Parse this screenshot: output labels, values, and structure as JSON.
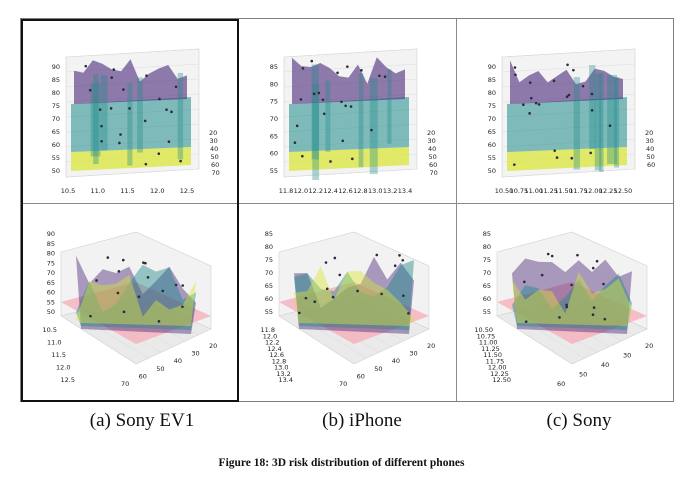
{
  "figure": {
    "caption": "Figure 18: 3D risk distribution of different phones"
  },
  "columns": [
    {
      "caption": "(a) Sony EV1"
    },
    {
      "caption": "(b) iPhone"
    },
    {
      "caption": "(c) Sony"
    }
  ],
  "plots": {
    "top": [
      {
        "x_ticks": [
          "10.5",
          "11.0",
          "11.5",
          "12.0",
          "12.5"
        ],
        "y_ticks": [
          "90",
          "85",
          "80",
          "75",
          "70",
          "65",
          "60",
          "55",
          "50"
        ],
        "depth_ticks": [
          "20",
          "30",
          "40",
          "50",
          "60",
          "70"
        ]
      },
      {
        "x_ticks": [
          "11.8",
          "12.0",
          "12.2",
          "12.4",
          "12.6",
          "12.8",
          "13.0",
          "13.2",
          "13.4"
        ],
        "y_ticks": [
          "85",
          "80",
          "75",
          "70",
          "65",
          "60",
          "55"
        ],
        "depth_ticks": [
          "20",
          "30",
          "40",
          "50",
          "60",
          "70"
        ]
      },
      {
        "x_ticks": [
          "10.50",
          "10.75",
          "11.00",
          "11.25",
          "11.50",
          "11.75",
          "12.00",
          "12.25",
          "12.50"
        ],
        "y_ticks": [
          "90",
          "85",
          "80",
          "75",
          "70",
          "65",
          "60",
          "55",
          "50"
        ],
        "depth_ticks": [
          "20",
          "30",
          "40",
          "50",
          "60"
        ]
      }
    ],
    "bottom": [
      {
        "z_ticks": [
          "90",
          "85",
          "80",
          "75",
          "70",
          "65",
          "60",
          "55",
          "50"
        ],
        "x_ticks": [
          "10.5",
          "11.0",
          "11.5",
          "12.0",
          "12.5"
        ],
        "y_ticks": [
          "70",
          "60",
          "50",
          "40",
          "30",
          "20"
        ]
      },
      {
        "z_ticks": [
          "85",
          "80",
          "75",
          "70",
          "65",
          "60",
          "55"
        ],
        "x_ticks": [
          "11.8",
          "12.0",
          "12.2",
          "12.4",
          "12.6",
          "12.8",
          "13.0",
          "13.2",
          "13.4"
        ],
        "y_ticks": [
          "70",
          "60",
          "50",
          "40",
          "30",
          "20"
        ]
      },
      {
        "z_ticks": [
          "85",
          "80",
          "75",
          "70",
          "65",
          "60",
          "55"
        ],
        "x_ticks": [
          "10.50",
          "10.75",
          "11.00",
          "11.25",
          "11.50",
          "11.75",
          "12.00",
          "12.25",
          "12.50"
        ],
        "y_ticks": [
          "60",
          "50",
          "40",
          "30",
          "20"
        ]
      }
    ]
  },
  "colors": {
    "surface_top": "#4b2a7a",
    "surface_mid": "#1f8a8a",
    "surface_low": "#d9e53a",
    "threshold_plane": "#f7a6b4"
  }
}
